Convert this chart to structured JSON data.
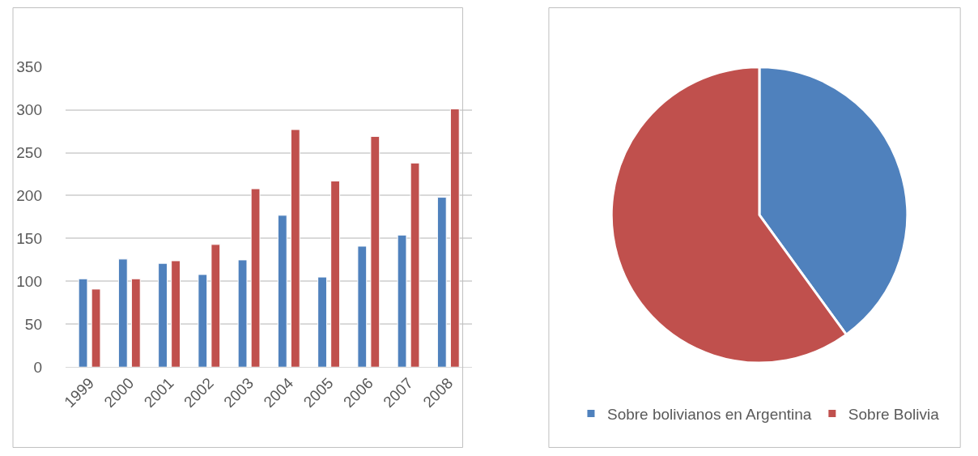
{
  "chart_data": [
    {
      "type": "bar",
      "categories": [
        "1999",
        "2000",
        "2001",
        "2002",
        "2003",
        "2004",
        "2005",
        "2006",
        "2007",
        "2008"
      ],
      "series": [
        {
          "color": "#4f81bd",
          "values": [
            103,
            126,
            121,
            108,
            125,
            177,
            105,
            141,
            154,
            198
          ]
        },
        {
          "color": "#c0504d",
          "values": [
            91,
            103,
            124,
            143,
            208,
            277,
            217,
            269,
            238,
            301
          ]
        }
      ],
      "ylim": [
        0,
        350
      ],
      "yticks": [
        0,
        50,
        100,
        150,
        200,
        250,
        300,
        350
      ],
      "grid": "y",
      "legend": false
    },
    {
      "type": "pie",
      "categories": [
        "Sobre bolivianos en Argentina",
        "Sobre Bolivia"
      ],
      "values": [
        40,
        60
      ],
      "colors": [
        "#4f81bd",
        "#c0504d"
      ],
      "legend": "bottom"
    }
  ]
}
